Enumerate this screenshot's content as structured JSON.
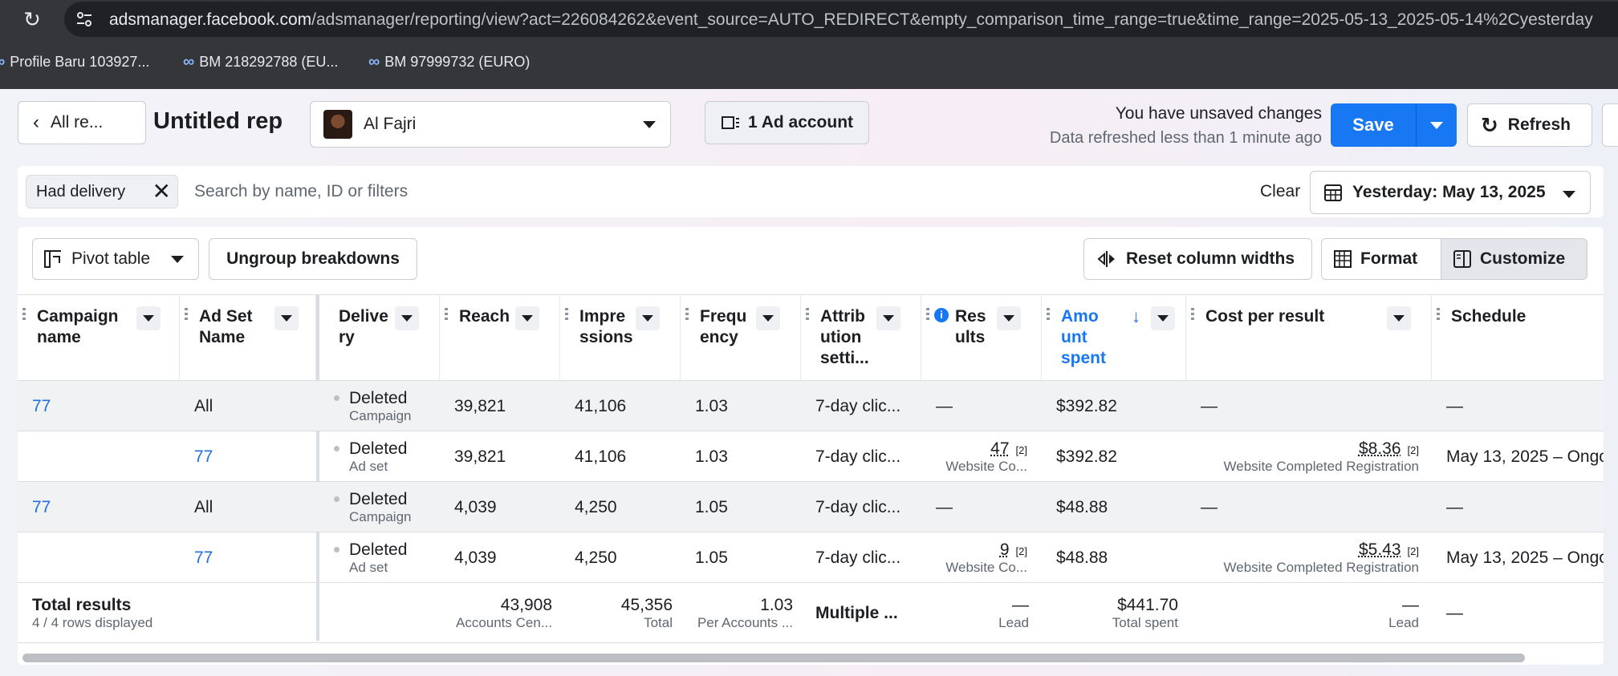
{
  "browser": {
    "url_host": "adsmanager.facebook.com",
    "url_path": "/adsmanager/reporting/view?act=226084262&event_source=AUTO_REDIRECT&empty_comparison_time_range=true&time_range=2025-05-13_2025-05-14%2Cyesterday",
    "bookmarks": [
      "Profile Baru 103927...",
      "BM 218292788 (EU...",
      "BM 97999732 (EURO)"
    ]
  },
  "header": {
    "back_label": "All re...",
    "report_title": "Untitled rep",
    "account_name": "Al Fajri",
    "ad_account_label": "1 Ad account",
    "unsaved_text": "You have unsaved changes",
    "refreshed_text": "Data refreshed less than 1 minute ago",
    "save_label": "Save",
    "refresh_label": "Refresh"
  },
  "filters": {
    "chip_label": "Had delivery",
    "search_placeholder": "Search by name, ID or filters",
    "clear_label": "Clear",
    "date_label": "Yesterday: May 13, 2025"
  },
  "toolbar": {
    "pivot_label": "Pivot table",
    "ungroup_label": "Ungroup breakdowns",
    "reset_columns_label": "Reset column widths",
    "format_label": "Format",
    "customize_label": "Customize"
  },
  "columns": [
    "Campaign name",
    "Ad Set Name",
    "Delive ry",
    "Reach",
    "Impre ssions",
    "Frequ ency",
    "Attrib ution setti...",
    "Res ults",
    "Amo unt spent",
    "Cost per result",
    "Schedule"
  ],
  "rows": [
    {
      "campaign": "77",
      "adset": "All",
      "delivery": "Deleted",
      "delivery_sub": "Campaign",
      "reach": "39,821",
      "impressions": "41,106",
      "frequency": "1.03",
      "attribution": "7-day clic...",
      "results": "—",
      "results_sub": "",
      "amount": "$392.82",
      "cpr": "—",
      "cpr_sub": "",
      "schedule": "—"
    },
    {
      "campaign": "",
      "adset": "77",
      "delivery": "Deleted",
      "delivery_sub": "Ad set",
      "reach": "39,821",
      "impressions": "41,106",
      "frequency": "1.03",
      "attribution": "7-day clic...",
      "results": "47",
      "results_sub": "Website Co...",
      "amount": "$392.82",
      "cpr": "$8.36",
      "cpr_sub": "Website Completed Registration",
      "schedule": "May 13, 2025 – Ongo"
    },
    {
      "campaign": "77",
      "adset": "All",
      "delivery": "Deleted",
      "delivery_sub": "Campaign",
      "reach": "4,039",
      "impressions": "4,250",
      "frequency": "1.05",
      "attribution": "7-day clic...",
      "results": "—",
      "results_sub": "",
      "amount": "$48.88",
      "cpr": "—",
      "cpr_sub": "",
      "schedule": "—"
    },
    {
      "campaign": "",
      "adset": "77",
      "delivery": "Deleted",
      "delivery_sub": "Ad set",
      "reach": "4,039",
      "impressions": "4,250",
      "frequency": "1.05",
      "attribution": "7-day clic...",
      "results": "9",
      "results_sub": "Website Co...",
      "amount": "$48.88",
      "cpr": "$5.43",
      "cpr_sub": "Website Completed Registration",
      "schedule": "May 13, 2025 – Ongo"
    }
  ],
  "footnote_marker": "[2]",
  "totals": {
    "label": "Total results",
    "rows_displayed": "4 / 4 rows displayed",
    "reach": "43,908",
    "reach_sub": "Accounts Cen...",
    "impressions": "45,356",
    "impressions_sub": "Total",
    "frequency": "1.03",
    "frequency_sub": "Per Accounts ...",
    "attribution": "Multiple ...",
    "results": "—",
    "results_sub": "Lead",
    "amount": "$441.70",
    "amount_sub": "Total spent",
    "cpr": "—",
    "cpr_sub": "Lead",
    "schedule": "—"
  },
  "colors": {
    "accent": "#1877f2",
    "link": "#216fdb",
    "sorted_header": "#1877f2"
  }
}
